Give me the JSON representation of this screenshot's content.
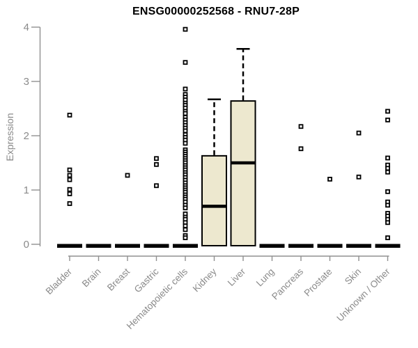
{
  "chart_data": {
    "type": "boxplot",
    "title": "ENSG00000252568 - RNU7-28P",
    "ylabel": "Expression",
    "xlabel": "",
    "ylim": [
      0,
      4
    ],
    "yticks": [
      0,
      1,
      2,
      3,
      4
    ],
    "legend": "none",
    "grid": false,
    "colors": {
      "box_fill": "#EDE8CF",
      "box_stroke": "#000000",
      "axis": "#909090",
      "tick_label": "#8a8a8a",
      "title": "#000000",
      "point": "#000000"
    },
    "categories": [
      "Bladder",
      "Brain",
      "Breast",
      "Gastric",
      "Hematopoietic cells",
      "Kidney",
      "Liver",
      "Lung",
      "Pancreas",
      "Prostate",
      "Skin",
      "Unknown / Other"
    ],
    "series": [
      {
        "category": "Bladder",
        "q1": 0,
        "median": 0,
        "q3": 0,
        "whisker_low": 0,
        "whisker_high": 0,
        "outliers": [
          2.38,
          1.37,
          1.27,
          1.19,
          1.01,
          0.93,
          0.75
        ]
      },
      {
        "category": "Brain",
        "q1": 0,
        "median": 0,
        "q3": 0,
        "whisker_low": 0,
        "whisker_high": 0,
        "outliers": []
      },
      {
        "category": "Breast",
        "q1": 0,
        "median": 0,
        "q3": 0,
        "whisker_low": 0,
        "whisker_high": 0,
        "outliers": [
          1.27
        ]
      },
      {
        "category": "Gastric",
        "q1": 0,
        "median": 0,
        "q3": 0,
        "whisker_low": 0,
        "whisker_high": 0,
        "outliers": [
          1.58,
          1.47,
          1.08
        ]
      },
      {
        "category": "Hematopoietic cells",
        "q1": 0,
        "median": 0,
        "q3": 0,
        "whisker_low": 0,
        "whisker_high": 0,
        "outliers": [
          3.96,
          3.35,
          2.86,
          2.76,
          2.71,
          2.66,
          2.6,
          2.56,
          2.51,
          2.45,
          2.41,
          2.34,
          2.29,
          2.24,
          2.19,
          2.14,
          2.09,
          2.02,
          1.97,
          1.92,
          1.86,
          1.74,
          1.7,
          1.66,
          1.62,
          1.58,
          1.54,
          1.5,
          1.45,
          1.41,
          1.37,
          1.32,
          1.28,
          1.23,
          1.18,
          1.13,
          1.08,
          1.04,
          1.0,
          0.96,
          0.91,
          0.87,
          0.83,
          0.78,
          0.72,
          0.67,
          0.56,
          0.5,
          0.46,
          0.4,
          0.34,
          0.27,
          0.16,
          0.12
        ]
      },
      {
        "category": "Kidney",
        "q1": 0,
        "median": 0.7,
        "q3": 1.63,
        "whisker_low": 0,
        "whisker_high": 2.67,
        "outliers": []
      },
      {
        "category": "Liver",
        "q1": 0,
        "median": 1.5,
        "q3": 2.64,
        "whisker_low": 0,
        "whisker_high": 3.6,
        "outliers": []
      },
      {
        "category": "Lung",
        "q1": 0,
        "median": 0,
        "q3": 0,
        "whisker_low": 0,
        "whisker_high": 0,
        "outliers": []
      },
      {
        "category": "Pancreas",
        "q1": 0,
        "median": 0,
        "q3": 0,
        "whisker_low": 0,
        "whisker_high": 0,
        "outliers": [
          2.17,
          1.76
        ]
      },
      {
        "category": "Prostate",
        "q1": 0,
        "median": 0,
        "q3": 0,
        "whisker_low": 0,
        "whisker_high": 0,
        "outliers": [
          1.2
        ]
      },
      {
        "category": "Skin",
        "q1": 0,
        "median": 0,
        "q3": 0,
        "whisker_low": 0,
        "whisker_high": 0,
        "outliers": [
          2.05,
          1.24
        ]
      },
      {
        "category": "Unknown / Other",
        "q1": 0,
        "median": 0,
        "q3": 0,
        "whisker_low": 0,
        "whisker_high": 0,
        "outliers": [
          2.45,
          2.29,
          1.59,
          1.46,
          1.4,
          1.33,
          0.97,
          0.78,
          0.72,
          0.57,
          0.52,
          0.46,
          0.4,
          0.12
        ]
      }
    ]
  }
}
